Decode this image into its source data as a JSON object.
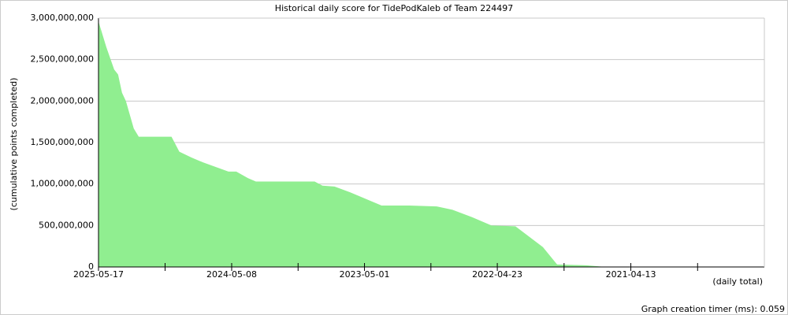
{
  "chart_data": {
    "type": "area",
    "title": "Historical daily score for TidePodKaleb of Team 224497",
    "y_label": "(cumulative points completed)",
    "x_label": "(daily total)",
    "footer": "Graph creation timer (ms): 0.059",
    "color": "#90ee90",
    "grid": true,
    "x_reversed": true,
    "x": [
      "2025-05-17",
      "2025-04-25",
      "2025-04-03",
      "2025-03-23",
      "2025-03-12",
      "2025-03-01",
      "2025-02-07",
      "2025-01-24",
      "2024-10-24",
      "2024-10-02",
      "2024-08-29",
      "2024-07-27",
      "2024-05-17",
      "2024-04-25",
      "2024-03-23",
      "2024-03-01",
      "2023-09-18",
      "2023-08-27",
      "2023-07-24",
      "2023-06-10",
      "2023-04-27",
      "2023-03-14",
      "2022-12-26",
      "2022-10-10",
      "2022-08-27",
      "2022-07-03",
      "2022-05-09",
      "2022-03-03",
      "2021-12-16",
      "2021-11-06",
      "2021-08-16",
      "2021-06-22"
    ],
    "values": [
      2960000000,
      2650000000,
      2380000000,
      2320000000,
      2100000000,
      2000000000,
      1670000000,
      1570000000,
      1570000000,
      1390000000,
      1320000000,
      1260000000,
      1150000000,
      1150000000,
      1070000000,
      1030000000,
      1030000000,
      980000000,
      970000000,
      900000000,
      820000000,
      740000000,
      740000000,
      730000000,
      690000000,
      600000000,
      500000000,
      490000000,
      240000000,
      30000000,
      20000000,
      0
    ],
    "xlim": [
      "2025-05-17",
      "2020-04-03"
    ],
    "xticks": [
      "2025-05-17",
      "2024-05-08",
      "2023-05-01",
      "2022-04-23",
      "2021-04-13"
    ],
    "ylim": [
      0,
      3000000000
    ],
    "yticks": [
      0,
      {
        "value": 500000000,
        "label": "500,000,000"
      },
      {
        "value": 1000000000,
        "label": "1,000,000,000"
      },
      {
        "value": 1500000000,
        "label": "1,500,000,000"
      },
      {
        "value": 2000000000,
        "label": "2,000,000,000"
      },
      {
        "value": 2500000000,
        "label": "2,500,000,000"
      },
      {
        "value": 3000000000,
        "label": "3,000,000,000"
      }
    ]
  }
}
